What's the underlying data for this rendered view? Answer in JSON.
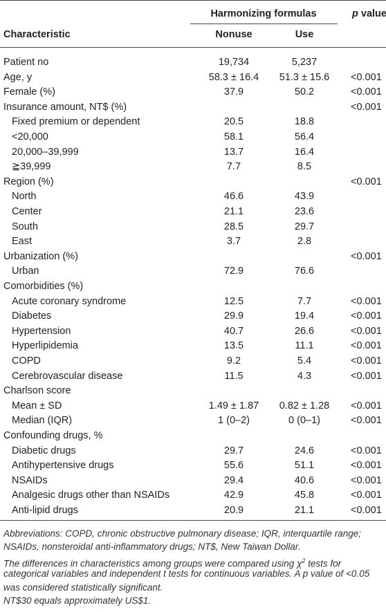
{
  "header": {
    "group": "Harmonizing formulas",
    "p_italic": "p",
    "p_rest": "value",
    "characteristic": "Characteristic",
    "nonuse": "Nonuse",
    "use": "Use"
  },
  "rows": [
    {
      "label": "Patient no",
      "nonuse": "19,734",
      "use": "5,237"
    },
    {
      "label": "Age, y",
      "nonuse": "58.3 ± 16.4",
      "use": "51.3 ± 15.6",
      "p": "<0.001"
    },
    {
      "label": "Female (%)",
      "nonuse": "37.9",
      "use": "50.2",
      "p": "<0.001"
    },
    {
      "label": "Insurance amount, NT$ (%)",
      "p": "<0.001",
      "items": [
        {
          "label": "Fixed premium or dependent",
          "nonuse": "20.5",
          "use": "18.8"
        },
        {
          "label": "<20,000",
          "nonuse": "58.1",
          "use": "56.4"
        },
        {
          "label": "20,000–39,999",
          "nonuse": "13.7",
          "use": "16.4"
        },
        {
          "label": "≧39,999",
          "nonuse": "7.7",
          "use": "8.5"
        }
      ]
    },
    {
      "label": "Region (%)",
      "p": "<0.001",
      "items": [
        {
          "label": "North",
          "nonuse": "46.6",
          "use": "43.9"
        },
        {
          "label": "Center",
          "nonuse": "21.1",
          "use": "23.6"
        },
        {
          "label": "South",
          "nonuse": "28.5",
          "use": "29.7"
        },
        {
          "label": "East",
          "nonuse": "3.7",
          "use": "2.8"
        }
      ]
    },
    {
      "label": "Urbanization (%)",
      "p": "<0.001",
      "items": [
        {
          "label": "Urban",
          "nonuse": "72.9",
          "use": "76.6"
        }
      ]
    },
    {
      "label": "Comorbidities (%)",
      "items": [
        {
          "label": "Acute coronary syndrome",
          "nonuse": "12.5",
          "use": "7.7",
          "p": "<0.001"
        },
        {
          "label": "Diabetes",
          "nonuse": "29.9",
          "use": "19.4",
          "p": "<0.001"
        },
        {
          "label": "Hypertension",
          "nonuse": "40.7",
          "use": "26.6",
          "p": "<0.001"
        },
        {
          "label": "Hyperlipidemia",
          "nonuse": "13.5",
          "use": "11.1",
          "p": "<0.001"
        },
        {
          "label": "COPD",
          "nonuse": "9.2",
          "use": "5.4",
          "p": "<0.001"
        },
        {
          "label": "Cerebrovascular disease",
          "nonuse": "11.5",
          "use": "4.3",
          "p": "<0.001"
        }
      ]
    },
    {
      "label": "Charlson score",
      "items": [
        {
          "label": "Mean ± SD",
          "nonuse": "1.49 ± 1.87",
          "use": "0.82 ± 1.28",
          "p": "<0.001"
        },
        {
          "label": "Median (IQR)",
          "nonuse": "1 (0–2)",
          "use": "0 (0–1)",
          "p": "<0.001"
        }
      ]
    },
    {
      "label": "Confounding drugs, %",
      "items": [
        {
          "label": "Diabetic drugs",
          "nonuse": "29.7",
          "use": "24.6",
          "p": "<0.001"
        },
        {
          "label": "Antihypertensive drugs",
          "nonuse": "55.6",
          "use": "51.1",
          "p": "<0.001"
        },
        {
          "label": "NSAIDs",
          "nonuse": "29.4",
          "use": "40.6",
          "p": "<0.001"
        },
        {
          "label": "Analgesic drugs other than NSAIDs",
          "nonuse": "42.9",
          "use": "45.8",
          "p": "<0.001"
        },
        {
          "label": "Anti-lipid drugs",
          "nonuse": "20.9",
          "use": "21.1",
          "p": "<0.001"
        }
      ]
    }
  ],
  "footnotes": [
    "Abbreviations: COPD, chronic obstructive pulmonary disease; IQR, interquartile range;",
    "NSAIDs, nonsteroidal anti-inflammatory drugs; NT$, New Taiwan Dollar.",
    {
      "before": "The differences in characteristics among groups were compared using χ",
      "sup": "2",
      "after": " tests for"
    },
    "categorical variables and independent t tests for continuous variables. A p value of <0.05",
    "was considered statistically significant.",
    "NT$30 equals approximately US$1."
  ]
}
